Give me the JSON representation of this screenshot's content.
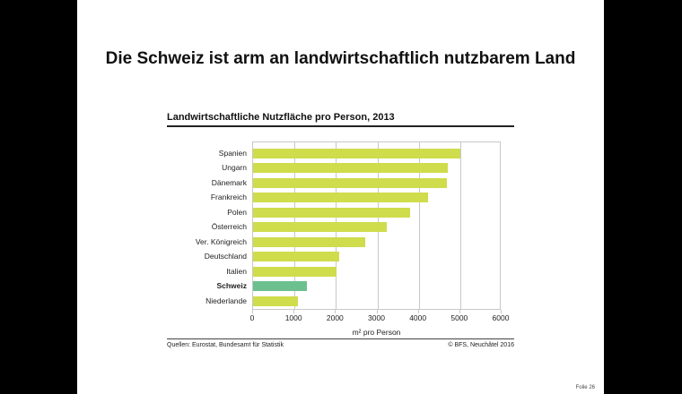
{
  "slide": {
    "title": "Die Schweiz ist arm an landwirtschaftlich nutzbarem Land",
    "slide_number": "Folie  26"
  },
  "chart_data": {
    "type": "bar",
    "orientation": "horizontal",
    "title": "Landwirtschaftliche Nutzfläche pro Person, 2013",
    "xlabel": "m² pro Person",
    "ylabel": "",
    "xlim": [
      0,
      6000
    ],
    "x_ticks": [
      "0",
      "1000",
      "2000",
      "3000",
      "4000",
      "5000",
      "6000"
    ],
    "grid": true,
    "categories": [
      "Spanien",
      "Ungarn",
      "Dänemark",
      "Frankreich",
      "Polen",
      "Österreich",
      "Ver. Königreich",
      "Deutschland",
      "Italien",
      "Schweiz",
      "Niederlande"
    ],
    "values": [
      5000,
      4700,
      4680,
      4220,
      3790,
      3230,
      2710,
      2080,
      2020,
      1300,
      1090
    ],
    "highlight": "Schweiz",
    "colors": {
      "default": "#cfdc4c",
      "highlight": "#6cc08f"
    },
    "source": "Quellen: Eurostat, Bundesamt für Statistik",
    "copyright": "© BFS, Neuchâtel 2016"
  }
}
